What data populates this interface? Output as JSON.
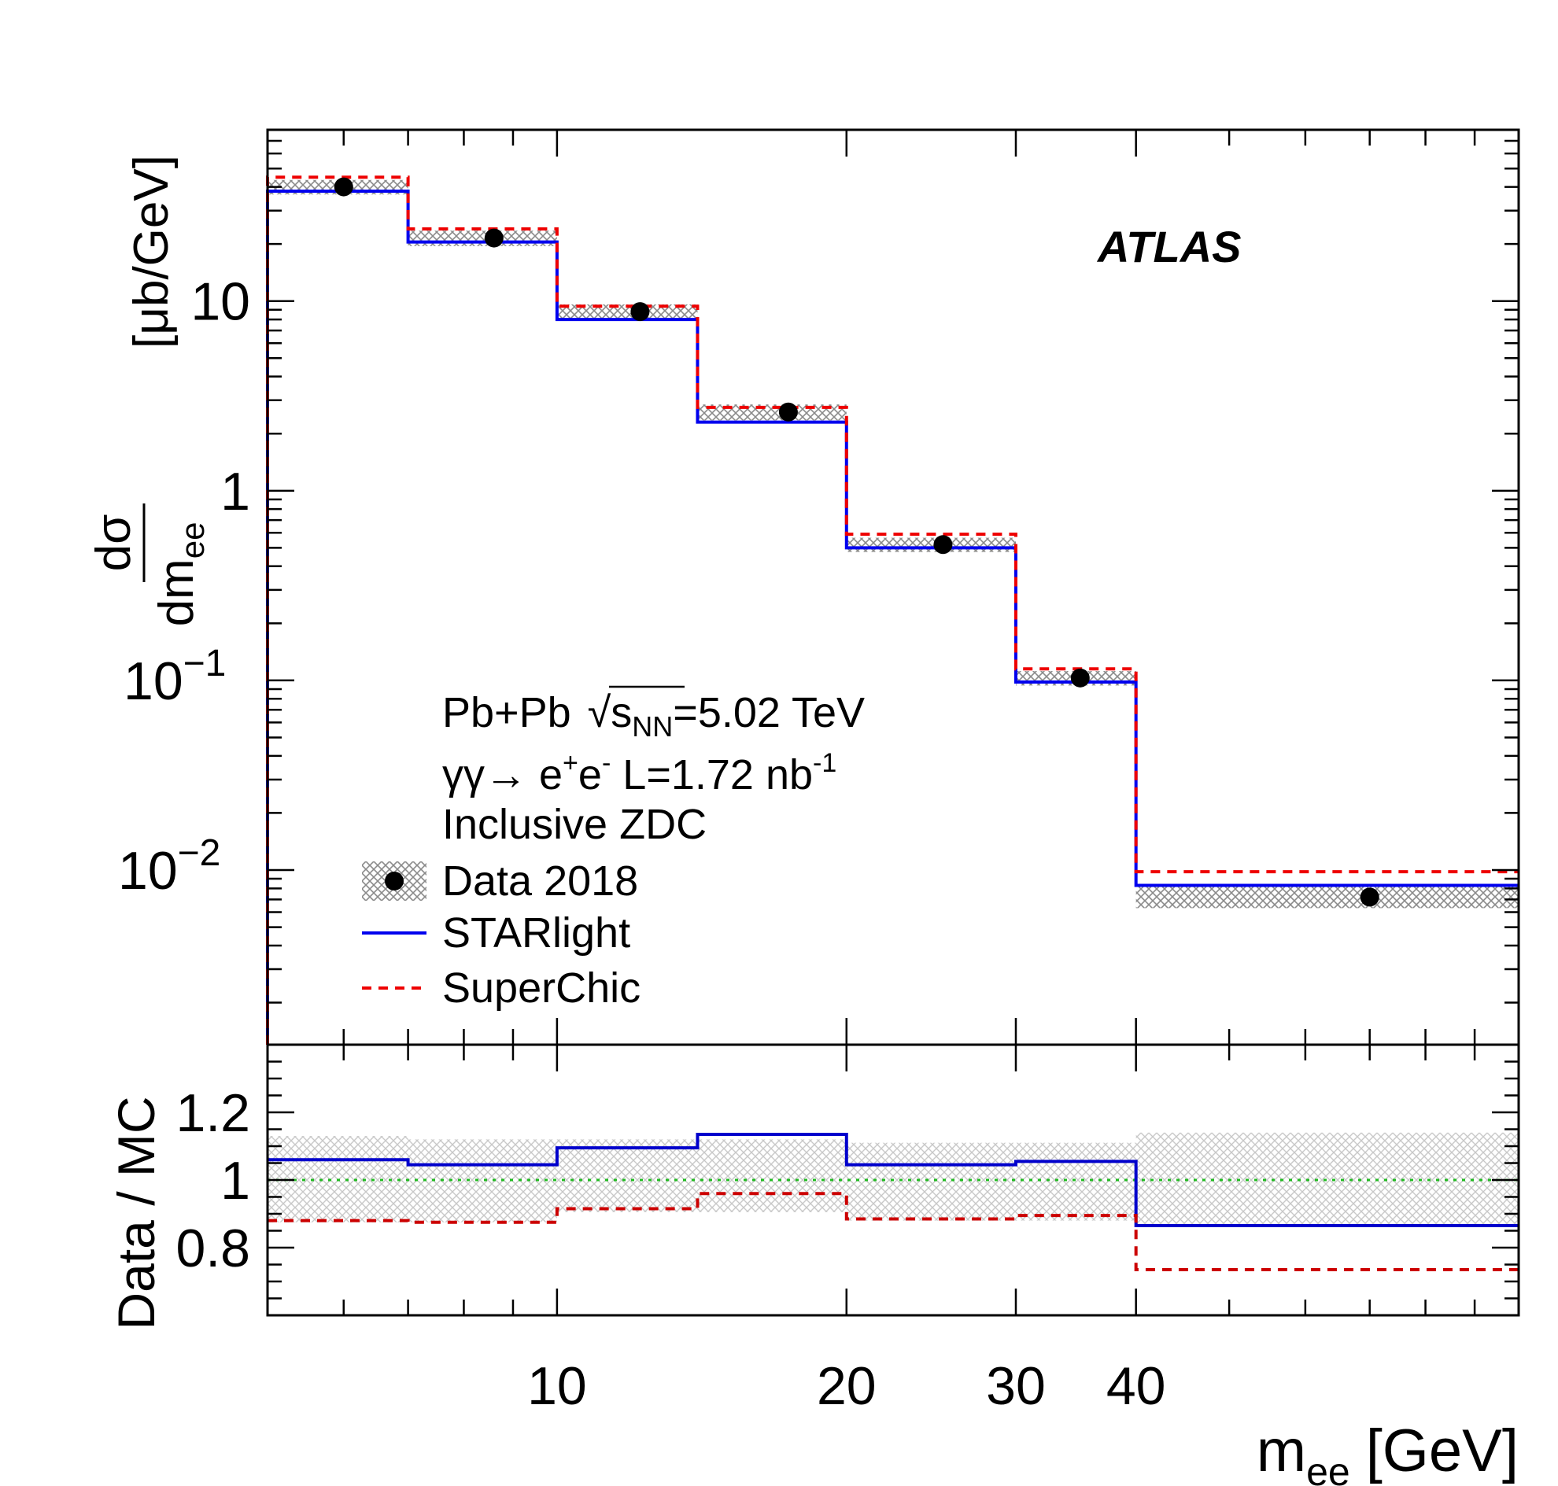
{
  "chart_data": {
    "type": "histogram",
    "experiment_label": "ATLAS",
    "xlabel": "m",
    "xlabel_sub": "ee",
    "xlabel_unit": "[GeV]",
    "x_scale": "log",
    "xlim": [
      5,
      100
    ],
    "x_tick_labels": [
      {
        "value": 10,
        "label": "10"
      },
      {
        "value": 20,
        "label": "20"
      },
      {
        "value": 30,
        "label": "30"
      },
      {
        "value": 40,
        "label": "40"
      }
    ],
    "bin_edges": [
      5,
      7,
      10,
      14,
      20,
      30,
      40,
      100
    ],
    "main_panel": {
      "y_scale": "log",
      "ylim": [
        0.0012,
        80
      ],
      "ylabel_num": "dσ",
      "ylabel_den": "dm",
      "ylabel_den_sub": "ee",
      "ylabel_unit": "[μb/GeV]",
      "y_tick_labels": [
        {
          "value": 10,
          "label": "10"
        },
        {
          "value": 1,
          "label": "1"
        },
        {
          "value": 0.1,
          "base": "10",
          "exp": "−1"
        },
        {
          "value": 0.01,
          "base": "10",
          "exp": "−2"
        }
      ],
      "series": [
        {
          "name": "Data 2018",
          "kind": "points",
          "x": [
            6.0,
            8.6,
            12.2,
            17.4,
            25.2,
            35.0,
            70.0
          ],
          "values": [
            40.0,
            21.5,
            8.8,
            2.6,
            0.52,
            0.103,
            0.0072
          ],
          "syst_band_low": [
            36.5,
            19.5,
            8.0,
            2.35,
            0.475,
            0.094,
            0.0063
          ],
          "syst_band_high": [
            43.5,
            23.5,
            9.6,
            2.85,
            0.565,
            0.112,
            0.0082
          ],
          "color": "#000000"
        },
        {
          "name": "STARlight",
          "kind": "step",
          "values": [
            38.0,
            20.5,
            8.0,
            2.3,
            0.5,
            0.098,
            0.0083
          ],
          "color": "#0000ee"
        },
        {
          "name": "SuperChic",
          "kind": "step",
          "values": [
            45.0,
            24.0,
            9.4,
            2.75,
            0.59,
            0.115,
            0.0098
          ],
          "color": "#ee0000"
        }
      ],
      "annotation_lines": [
        {
          "pre": "Pb+Pb ",
          "sqrt": "s",
          "sub": "NN",
          "post": "=5.02 TeV"
        },
        {
          "pre": "γγ→ e",
          "sup1": "+",
          "mid": "e",
          "sup2": "-",
          "post": " L=1.72 nb",
          "sup3": "-1"
        },
        {
          "pre": "Inclusive ZDC"
        }
      ]
    },
    "ratio_panel": {
      "ylabel": "Data / MC",
      "ylim": [
        0.6,
        1.4
      ],
      "y_tick_labels": [
        {
          "value": 1.2,
          "label": "1.2"
        },
        {
          "value": 1,
          "label": "1"
        },
        {
          "value": 0.8,
          "label": "0.8"
        }
      ],
      "reference_line": 1.0,
      "reference_color": "#22bb22",
      "band_low": [
        0.875,
        0.875,
        0.905,
        0.905,
        0.88,
        0.88,
        0.87
      ],
      "band_high": [
        1.13,
        1.12,
        1.12,
        1.12,
        1.11,
        1.11,
        1.14
      ],
      "series": [
        {
          "name": "STARlight",
          "values": [
            1.06,
            1.045,
            1.095,
            1.135,
            1.045,
            1.055,
            0.865
          ],
          "color": "#0000cc"
        },
        {
          "name": "SuperChic",
          "values": [
            0.88,
            0.875,
            0.915,
            0.96,
            0.885,
            0.895,
            0.735
          ],
          "color": "#cc0000"
        }
      ]
    }
  }
}
